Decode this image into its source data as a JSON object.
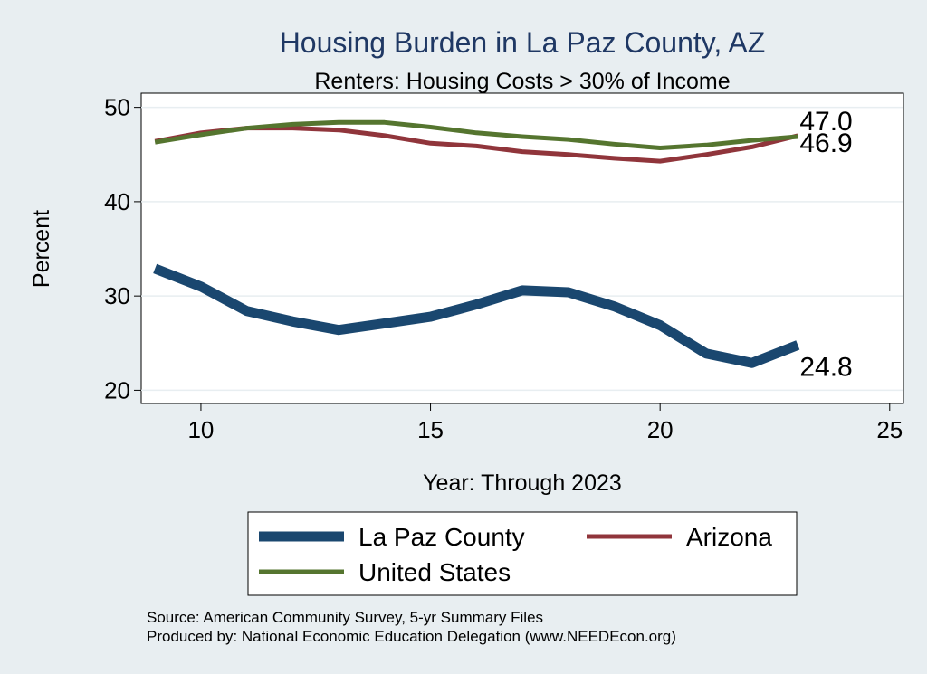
{
  "chart_data": {
    "type": "line",
    "title": "Housing Burden in La Paz County, AZ",
    "subtitle": "Renters: Housing Costs > 30% of Income",
    "xlabel": "Year: Through 2023",
    "ylabel": "Percent",
    "xlim": [
      8.7,
      25.3
    ],
    "ylim": [
      18.6,
      51.5
    ],
    "xticks": [
      10,
      15,
      20,
      25
    ],
    "yticks": [
      20,
      30,
      40,
      50
    ],
    "grid": true,
    "series": [
      {
        "name": "La Paz County",
        "color": "#1a476f",
        "emphasis": "thick",
        "x": [
          9,
          10,
          11,
          12,
          13,
          14,
          15,
          16,
          17,
          18,
          19,
          20,
          21,
          22,
          23
        ],
        "y": [
          32.9,
          31.0,
          28.4,
          27.3,
          26.4,
          27.1,
          27.8,
          29.1,
          30.6,
          30.4,
          28.9,
          26.9,
          23.9,
          22.9,
          24.8
        ],
        "end_label": "24.8"
      },
      {
        "name": "Arizona",
        "color": "#90353b",
        "emphasis": "normal",
        "x": [
          9,
          10,
          11,
          12,
          13,
          14,
          15,
          16,
          17,
          18,
          19,
          20,
          21,
          22,
          23
        ],
        "y": [
          46.4,
          47.3,
          47.8,
          47.8,
          47.6,
          47.0,
          46.2,
          45.9,
          45.3,
          45.0,
          44.6,
          44.3,
          45.0,
          45.8,
          47.0
        ],
        "end_label": "47.0"
      },
      {
        "name": "United States",
        "color": "#55752f",
        "emphasis": "normal",
        "x": [
          9,
          10,
          11,
          12,
          13,
          14,
          15,
          16,
          17,
          18,
          19,
          20,
          21,
          22,
          23
        ],
        "y": [
          46.3,
          47.1,
          47.8,
          48.2,
          48.4,
          48.4,
          47.9,
          47.3,
          46.9,
          46.6,
          46.1,
          45.7,
          46.0,
          46.5,
          46.9
        ],
        "end_label": "46.9"
      }
    ],
    "legend": {
      "placement": "bottom",
      "entries": [
        "La Paz County",
        "Arizona",
        "United States"
      ]
    }
  },
  "source_line": "Source: American Community Survey, 5-yr Summary Files",
  "produced_line": "Produced by: National Economic Education Delegation (www.NEEDEcon.org)"
}
